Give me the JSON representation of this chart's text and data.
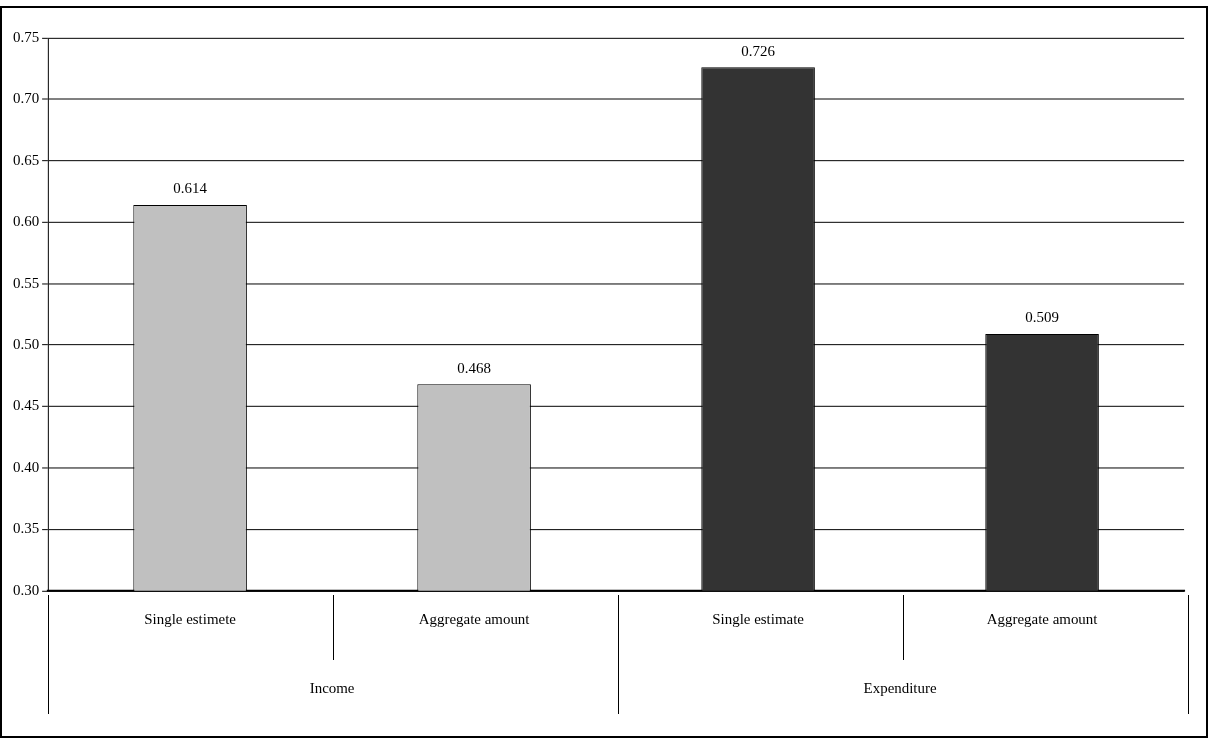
{
  "chart_data": {
    "type": "bar",
    "categories": [
      "Single estimete",
      "Aggregate amount",
      "Single estimate",
      "Aggregate amount"
    ],
    "values": [
      0.614,
      0.468,
      0.726,
      0.509
    ],
    "colors": [
      "#c0c0c0",
      "#c0c0c0",
      "#333333",
      "#333333"
    ],
    "annotations": [
      "Income",
      "Expenditure"
    ],
    "ylim": [
      0.3,
      0.75
    ],
    "yticks": [
      {
        "value": 0.3,
        "label": "0.30"
      },
      {
        "value": 0.35,
        "label": "0.35"
      },
      {
        "value": 0.4,
        "label": "0.40"
      },
      {
        "value": 0.45,
        "label": "0.45"
      },
      {
        "value": 0.5,
        "label": "0.50"
      },
      {
        "value": 0.55,
        "label": "0.55"
      },
      {
        "value": 0.6,
        "label": "0.60"
      },
      {
        "value": 0.65,
        "label": "0.65"
      },
      {
        "value": 0.7,
        "label": "0.70"
      },
      {
        "value": 0.75,
        "label": "0.75"
      }
    ],
    "grid": "y",
    "data_labels": true,
    "legend": false
  }
}
